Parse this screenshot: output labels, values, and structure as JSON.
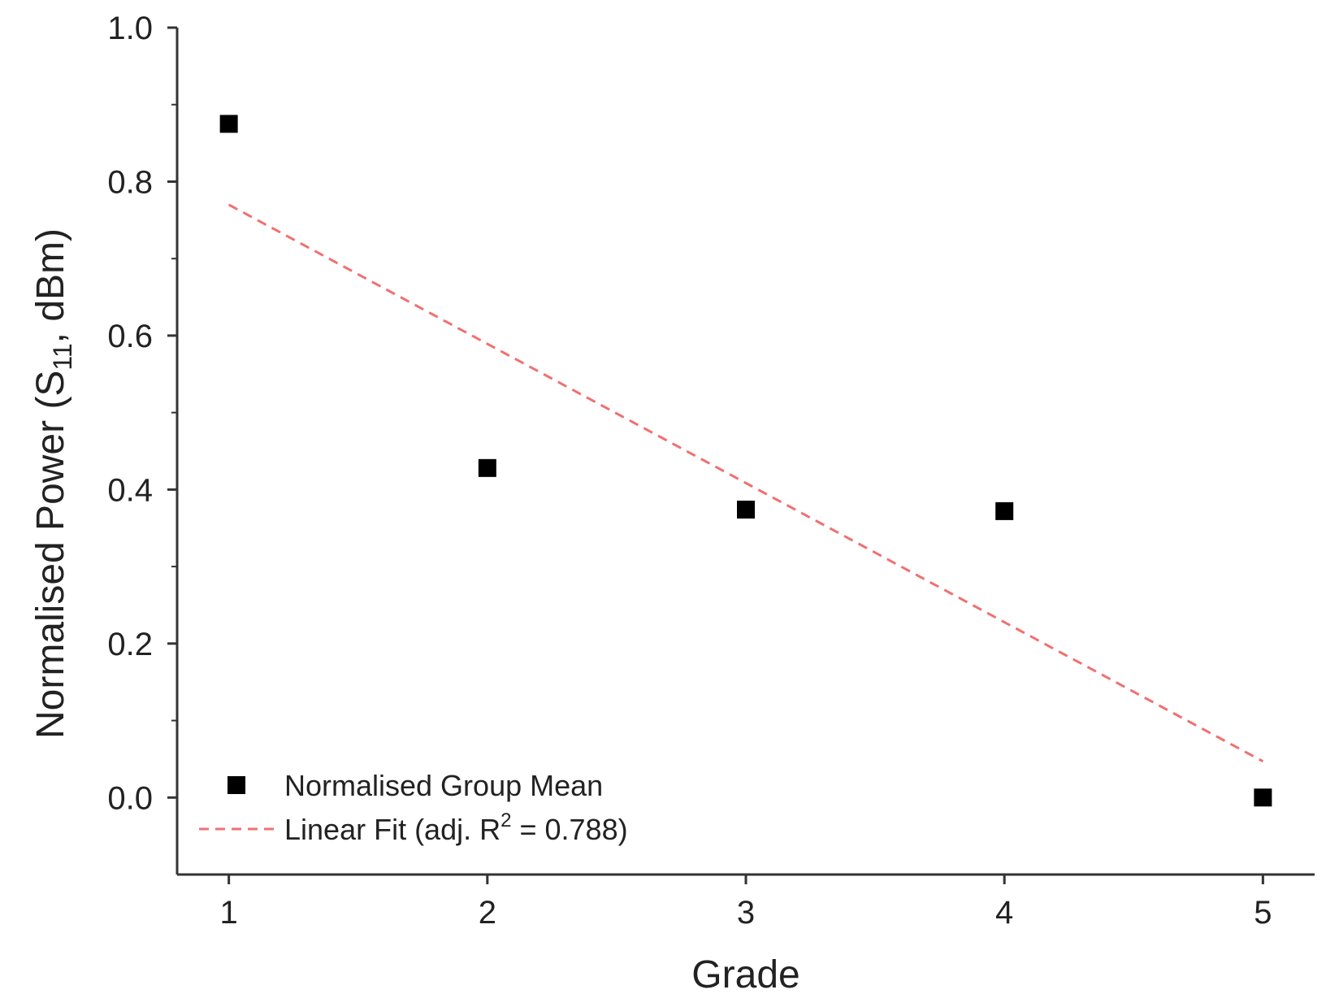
{
  "chart_data": {
    "type": "scatter",
    "title": "",
    "xlabel": "Grade",
    "ylabel": {
      "prefix": "Normalised Power (S",
      "subscript": "11",
      "suffix": ", dBm)"
    },
    "xlim": [
      0.8,
      5.2
    ],
    "ylim": [
      -0.1,
      1.0
    ],
    "xticks": [
      1,
      2,
      3,
      4,
      5
    ],
    "xtick_labels": [
      "1",
      "2",
      "3",
      "4",
      "5"
    ],
    "yticks": [
      0.0,
      0.2,
      0.4,
      0.6,
      0.8,
      1.0
    ],
    "ytick_labels": [
      "0.0",
      "0.2",
      "0.4",
      "0.6",
      "0.8",
      "1.0"
    ],
    "grid": false,
    "legend_position": "bottom-left",
    "series": [
      {
        "name": "Normalised Group Mean",
        "kind": "scatter",
        "marker": "square",
        "color": "#000000",
        "x": [
          1,
          2,
          3,
          4,
          5
        ],
        "y": [
          0.875,
          0.428,
          0.374,
          0.372,
          0.0
        ]
      },
      {
        "name": "Linear Fit",
        "kind": "line",
        "style": "dashed",
        "color": "#f07070",
        "x": [
          1,
          5
        ],
        "y": [
          0.77,
          0.047
        ],
        "adj_r2": "0.788"
      }
    ],
    "legend": [
      {
        "label": "Normalised Group Mean"
      },
      {
        "label_prefix": "Linear Fit (adj. R",
        "label_sup": "2",
        "label_suffix": " = 0.788)"
      }
    ]
  }
}
